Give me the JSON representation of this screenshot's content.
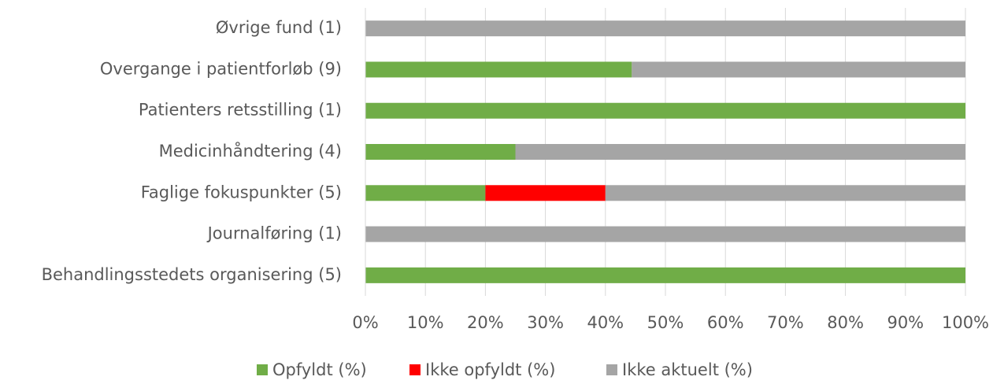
{
  "chart_data": {
    "type": "stacked_bar_horizontal",
    "categories": [
      "Øvrige fund (1)",
      "Overgange i patientforløb (9)",
      "Patienters retsstilling (1)",
      "Medicinhåndtering (4)",
      "Faglige fokuspunkter (5)",
      "Journalføring (1)",
      "Behandlingsstedets organisering (5)"
    ],
    "series": [
      {
        "name": "Opfyldt (%)",
        "color": "#70ad47",
        "values": [
          0,
          44.4,
          100,
          25,
          20,
          0,
          100
        ]
      },
      {
        "name": "Ikke opfyldt (%)",
        "color": "#ff0000",
        "values": [
          0,
          0,
          0,
          0,
          20,
          0,
          0
        ]
      },
      {
        "name": "Ikke aktuelt (%)",
        "color": "#a5a5a5",
        "values": [
          100,
          55.6,
          0,
          75,
          60,
          100,
          0
        ]
      }
    ],
    "xlim": [
      0,
      100
    ],
    "xticks": [
      {
        "value": 0,
        "label": "0%"
      },
      {
        "value": 10,
        "label": "10%"
      },
      {
        "value": 20,
        "label": "20%"
      },
      {
        "value": 30,
        "label": "30%"
      },
      {
        "value": 40,
        "label": "40%"
      },
      {
        "value": 50,
        "label": "50%"
      },
      {
        "value": 60,
        "label": "60%"
      },
      {
        "value": 70,
        "label": "70%"
      },
      {
        "value": 80,
        "label": "80%"
      },
      {
        "value": 90,
        "label": "90%"
      },
      {
        "value": 100,
        "label": "100%"
      }
    ],
    "grid": true,
    "legend": "bottom"
  }
}
